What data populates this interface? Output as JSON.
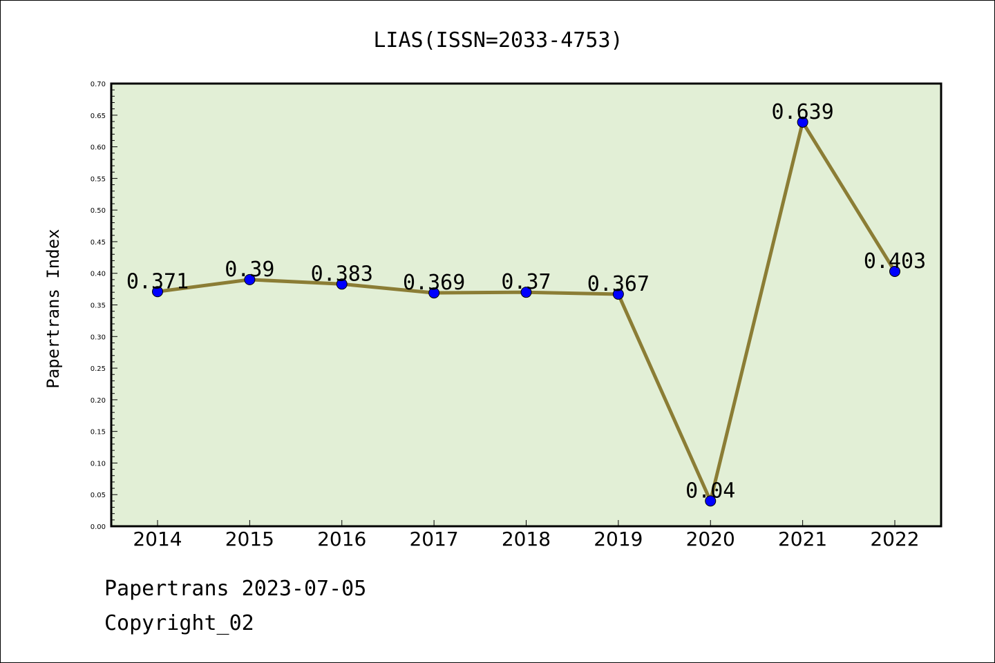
{
  "chart_data": {
    "type": "line",
    "title": "LIAS(ISSN=2033-4753)",
    "xlabel": "",
    "ylabel": "Papertrans Index",
    "categories": [
      "2014",
      "2015",
      "2016",
      "2017",
      "2018",
      "2019",
      "2020",
      "2021",
      "2022"
    ],
    "series": [
      {
        "values": [
          0.371,
          0.39,
          0.383,
          0.369,
          0.37,
          0.367,
          0.04,
          0.639,
          0.403
        ],
        "value_labels": [
          "0.371",
          "0.39",
          "0.383",
          "0.369",
          "0.37",
          "0.367",
          "0.04",
          "0.639",
          "0.403"
        ],
        "line_color": "#8b7d35",
        "marker_color": "#0000ff"
      }
    ],
    "ylim": [
      0,
      0.7
    ],
    "yticks": [
      "0.00",
      "0.05",
      "0.10",
      "0.15",
      "0.20",
      "0.25",
      "0.30",
      "0.35",
      "0.40",
      "0.45",
      "0.50",
      "0.55",
      "0.60",
      "0.65",
      "0.70"
    ],
    "grid": false,
    "legend": "none",
    "plot_background": "#e2efd6"
  },
  "footer": {
    "line1": "Papertrans 2023-07-05",
    "line2": "Copyright_02"
  }
}
